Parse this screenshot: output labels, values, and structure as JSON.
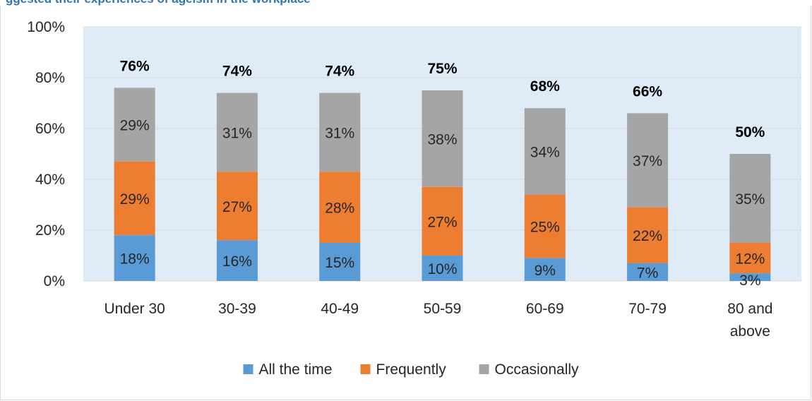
{
  "header": {
    "partial_title": "ggested their experiences of ageism in the workplace"
  },
  "chart_data": {
    "type": "bar",
    "stacked": true,
    "categories": [
      "Under 30",
      "30-39",
      "40-49",
      "50-59",
      "60-69",
      "70-79",
      "80 and above"
    ],
    "series": [
      {
        "name": "All the time",
        "color": "#5b9bd5",
        "values": [
          18,
          16,
          15,
          10,
          9,
          7,
          3
        ]
      },
      {
        "name": "Frequently",
        "color": "#ed7d31",
        "values": [
          29,
          27,
          28,
          27,
          25,
          22,
          12
        ]
      },
      {
        "name": "Occasionally",
        "color": "#a5a5a5",
        "values": [
          29,
          31,
          31,
          38,
          34,
          37,
          35
        ]
      }
    ],
    "totals": [
      76,
      74,
      74,
      75,
      68,
      66,
      50
    ],
    "ylim": [
      0,
      100
    ],
    "yticks": [
      "0%",
      "20%",
      "40%",
      "60%",
      "80%",
      "100%"
    ],
    "grid": true,
    "plot_background": "#dfebf7",
    "legend_position": "bottom"
  }
}
